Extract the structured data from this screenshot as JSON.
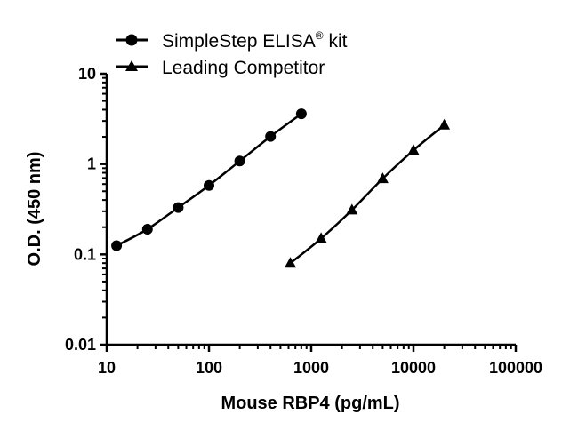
{
  "chart_data": {
    "type": "scatter",
    "title": "",
    "xlabel": "Mouse RBP4 (pg/mL)",
    "ylabel": "O.D. (450 nm)",
    "xscale": "log",
    "yscale": "log",
    "xlim": [
      10,
      100000
    ],
    "ylim": [
      0.01,
      10
    ],
    "x_ticks": [
      "10",
      "100",
      "1000",
      "10000",
      "100000"
    ],
    "y_ticks": [
      "0.01",
      "0.1",
      "1",
      "10"
    ],
    "legend": {
      "placement": "top-left"
    },
    "grid": false,
    "series": [
      {
        "name": "SimpleStep ELISA",
        "name_sup": "®",
        "name_suffix": " kit",
        "marker": "circle",
        "color": "#000000",
        "x": [
          12.5,
          25,
          50,
          100,
          200,
          400,
          800
        ],
        "y": [
          0.125,
          0.19,
          0.33,
          0.58,
          1.08,
          2.02,
          3.6
        ]
      },
      {
        "name": "Leading Competitor",
        "marker": "triangle",
        "color": "#000000",
        "x": [
          625,
          1250,
          2500,
          5000,
          10000,
          20000
        ],
        "y": [
          0.08,
          0.15,
          0.31,
          0.69,
          1.42,
          2.7
        ]
      }
    ]
  }
}
